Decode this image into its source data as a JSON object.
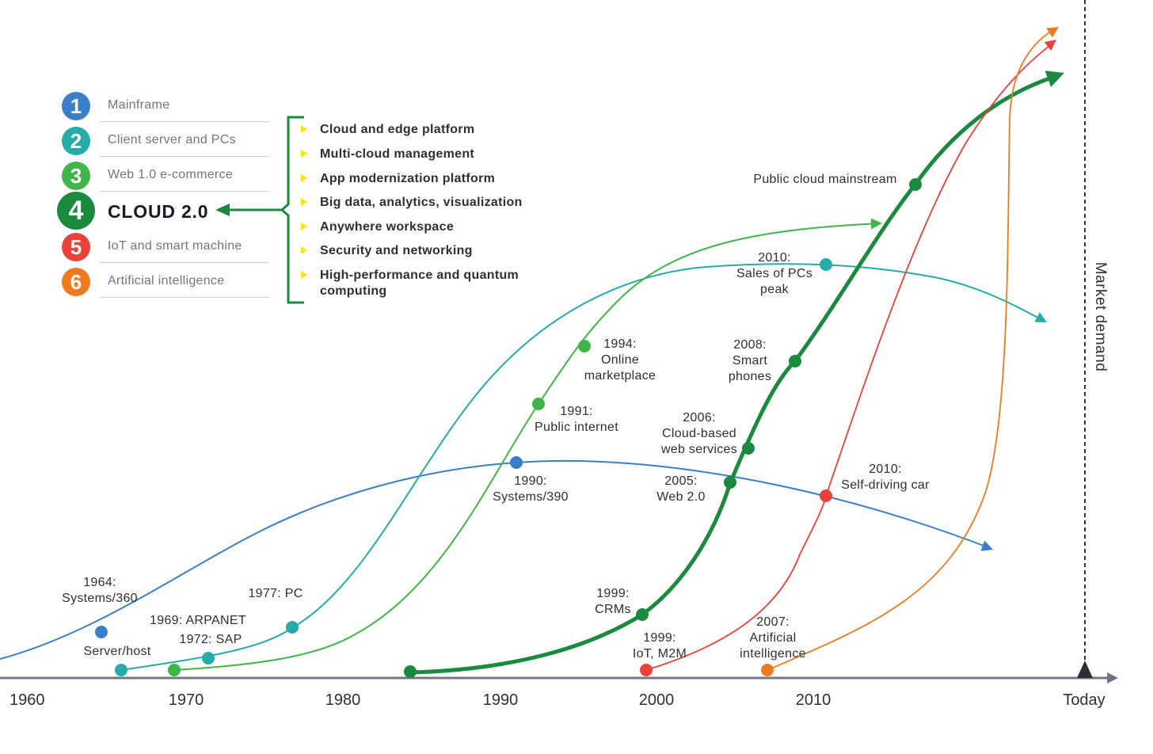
{
  "colors": {
    "mainframe": "#3a7fc8",
    "client_server": "#27aaaa",
    "web1": "#3fb54a",
    "cloud": "#1b8a3e",
    "iot": "#e8423a",
    "ai": "#ef7a1e",
    "axis": "#747480",
    "text": "#2e2e38"
  },
  "legend": {
    "items": [
      {
        "num": "1",
        "label": "Mainframe",
        "color": "#3a7fc8"
      },
      {
        "num": "2",
        "label": "Client server and PCs",
        "color": "#27aaaa"
      },
      {
        "num": "3",
        "label": "Web 1.0 e-commerce",
        "color": "#3fb54a"
      },
      {
        "num": "4",
        "label": "CLOUD 2.0",
        "color": "#1b8a3e"
      },
      {
        "num": "5",
        "label": "IoT and smart machine",
        "color": "#e8423a"
      },
      {
        "num": "6",
        "label": "Artificial intelligence",
        "color": "#ef7a1e"
      }
    ]
  },
  "features": [
    "Cloud and edge platform",
    "Multi-cloud management",
    "App modernization platform",
    "Big data, analytics, visualization",
    "Anywhere workspace",
    "Security and networking",
    "High-performance and quantum computing"
  ],
  "axis": {
    "x_ticks": [
      "1960",
      "1970",
      "1980",
      "1990",
      "2000",
      "2010",
      "Today"
    ],
    "y_label": "Market demand"
  },
  "events": [
    {
      "series": "mainframe",
      "text": [
        "1964:",
        "Systems/360"
      ]
    },
    {
      "series": "mainframe",
      "text": [
        "1990:",
        "Systems/390"
      ]
    },
    {
      "series": "client_server",
      "text": [
        "Server/host"
      ]
    },
    {
      "series": "client_server",
      "text": [
        "1972: SAP"
      ]
    },
    {
      "series": "client_server",
      "text": [
        "1977: PC"
      ]
    },
    {
      "series": "client_server",
      "text": [
        "2010:",
        "Sales of PCs",
        "peak"
      ]
    },
    {
      "series": "web1",
      "text": [
        "1969: ARPANET"
      ]
    },
    {
      "series": "web1",
      "text": [
        "1991:",
        "Public internet"
      ]
    },
    {
      "series": "web1",
      "text": [
        "1994:",
        "Online",
        "marketplace"
      ]
    },
    {
      "series": "cloud",
      "text": [
        "1999:",
        "CRMs"
      ]
    },
    {
      "series": "cloud",
      "text": [
        "2005:",
        "Web 2.0"
      ]
    },
    {
      "series": "cloud",
      "text": [
        "2006:",
        "Cloud-based",
        "web services"
      ]
    },
    {
      "series": "cloud",
      "text": [
        "2008:",
        "Smart",
        "phones"
      ]
    },
    {
      "series": "cloud",
      "text": [
        "Public cloud mainstream"
      ]
    },
    {
      "series": "iot",
      "text": [
        "1999:",
        "IoT, M2M"
      ]
    },
    {
      "series": "iot",
      "text": [
        "2010:",
        "Self-driving car"
      ]
    },
    {
      "series": "ai",
      "text": [
        "2007:",
        "Artificial",
        "intelligence"
      ]
    }
  ]
}
